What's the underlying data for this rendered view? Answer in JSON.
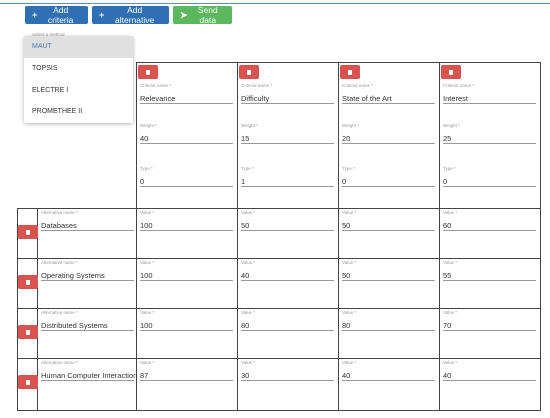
{
  "toolbar": {
    "add_criteria": "Add criteria",
    "add_alternative": "Add alternative",
    "send_data": "Send data"
  },
  "method_select": {
    "label": "Select a method",
    "options": [
      "MAUT",
      "TOPSIS",
      "ELECTRE I",
      "PROMETHEE II"
    ],
    "selected": "MAUT"
  },
  "labels": {
    "criterion_name": "Criterial name *",
    "weight": "Weight *",
    "type": "Type *",
    "alternative_name": "Alternative name *",
    "value": "Value *"
  },
  "criteria": [
    {
      "name": "Relevance",
      "weight": "40",
      "type": "0"
    },
    {
      "name": "Difficulty",
      "weight": "15",
      "type": "1"
    },
    {
      "name": "State of the Art",
      "weight": "20",
      "type": "0"
    },
    {
      "name": "Interest",
      "weight": "25",
      "type": "0"
    }
  ],
  "alternatives": [
    {
      "name": "Databases",
      "values": [
        "100",
        "50",
        "50",
        "60"
      ]
    },
    {
      "name": "Operating Systems",
      "values": [
        "100",
        "40",
        "50",
        "55"
      ]
    },
    {
      "name": "Distributed Systems",
      "values": [
        "100",
        "80",
        "80",
        "70"
      ]
    },
    {
      "name": "Human Computer Interaction",
      "values": [
        "87",
        "30",
        "40",
        "40"
      ]
    }
  ],
  "colors": {
    "primary": "#2f6fb3",
    "success": "#5cb85c",
    "danger": "#d9534f"
  }
}
